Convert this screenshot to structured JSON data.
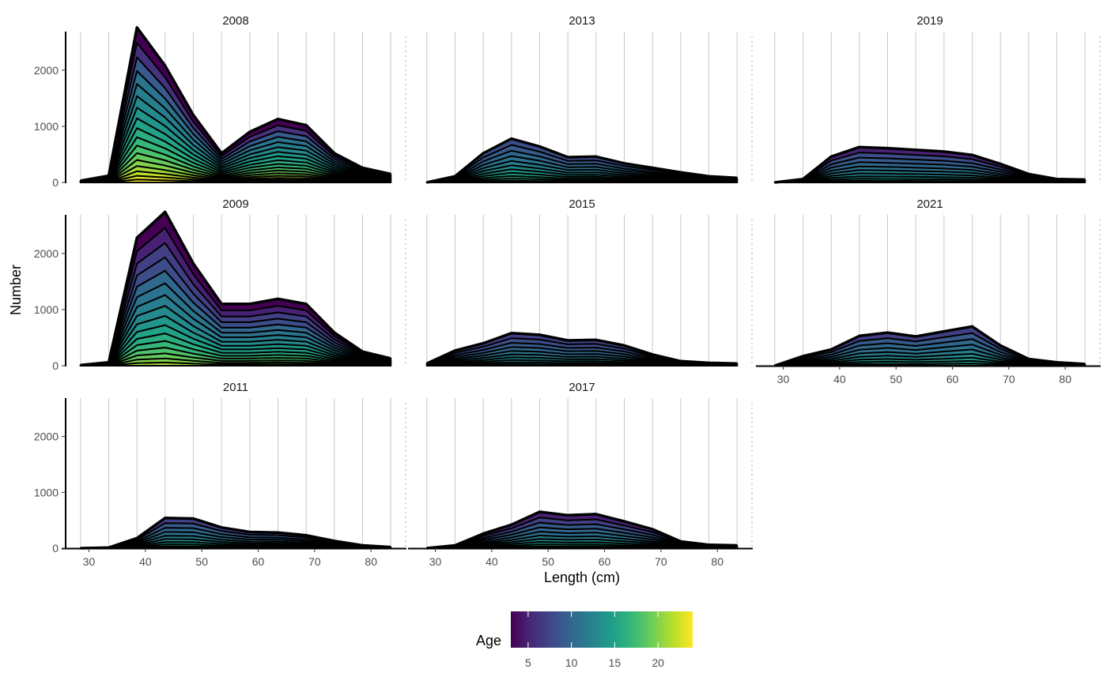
{
  "chart_data": {
    "type": "area",
    "stacked": true,
    "layout": "facet-wrap, 3 columns",
    "xlabel": "Length (cm)",
    "ylabel": "Number",
    "xlim": [
      26,
      86
    ],
    "ylim": [
      0,
      2800
    ],
    "x_ticks": [
      30,
      40,
      50,
      60,
      70,
      80
    ],
    "y_ticks": [
      0,
      1000,
      2000
    ],
    "x": [
      28.5,
      33.5,
      38.5,
      43.5,
      48.5,
      53.5,
      58.5,
      63.5,
      68.5,
      73.5,
      78.5,
      83.5
    ],
    "legend": {
      "title": "Age",
      "type": "colorbar",
      "placement": "bottom",
      "range": [
        3,
        24
      ],
      "ticks": [
        5,
        10,
        15,
        20
      ],
      "colors": [
        "#440154",
        "#482878",
        "#3e4989",
        "#31688e",
        "#26828e",
        "#1f9e89",
        "#35b779",
        "#6ece58",
        "#b5de2b",
        "#fde725"
      ]
    },
    "panels": [
      {
        "label": "2008",
        "band_ages": [
          3,
          6,
          9,
          11,
          12,
          13,
          14,
          15,
          16,
          17,
          18,
          19,
          20,
          21,
          22,
          23,
          24
        ],
        "totals": [
          30,
          120,
          2760,
          2080,
          1200,
          520,
          900,
          1130,
          1020,
          520,
          260,
          150
        ],
        "x_end": 83.5
      },
      {
        "label": "2013",
        "band_ages": [
          8,
          9,
          10,
          11,
          12,
          13,
          14,
          15,
          16,
          17,
          18
        ],
        "totals": [
          0,
          110,
          520,
          780,
          640,
          450,
          460,
          340,
          260,
          180,
          110,
          80
        ],
        "x_end": 83.5
      },
      {
        "label": "2019",
        "band_ages": [
          5,
          8,
          9,
          10,
          11,
          12,
          13,
          14,
          15,
          16
        ],
        "totals": [
          0,
          60,
          460,
          630,
          610,
          580,
          550,
          490,
          330,
          150,
          60,
          50
        ],
        "x_end": 83.5
      },
      {
        "label": "2009",
        "band_ages": [
          3,
          5,
          7,
          8,
          10,
          11,
          12,
          13,
          14,
          15,
          16,
          17,
          18,
          19,
          20,
          21
        ],
        "totals": [
          10,
          60,
          2280,
          2740,
          1820,
          1100,
          1100,
          1190,
          1100,
          590,
          250,
          130
        ],
        "x_end": 83.5
      },
      {
        "label": "2015",
        "band_ages": [
          7,
          8,
          9,
          10,
          11,
          12,
          13,
          14,
          15,
          16
        ],
        "totals": [
          40,
          270,
          400,
          580,
          550,
          450,
          460,
          360,
          200,
          80,
          50,
          40
        ],
        "x_end": 83.5
      },
      {
        "label": "2021",
        "band_ages": [
          7,
          9,
          10,
          11,
          12,
          13,
          14,
          15,
          16
        ],
        "totals": [
          0,
          170,
          290,
          530,
          590,
          520,
          610,
          700,
          360,
          120,
          60,
          30
        ],
        "x_end": 83.5
      },
      {
        "label": "2011",
        "band_ages": [
          7,
          9,
          10,
          11,
          12,
          13,
          14,
          15,
          16
        ],
        "totals": [
          0,
          10,
          180,
          540,
          530,
          370,
          290,
          280,
          230,
          130,
          50,
          20
        ],
        "x_end": 83.5
      },
      {
        "label": "2017",
        "band_ages": [
          5,
          7,
          9,
          10,
          11,
          12,
          13,
          14,
          15,
          16
        ],
        "totals": [
          0,
          50,
          260,
          420,
          650,
          590,
          610,
          480,
          340,
          120,
          60,
          50
        ],
        "x_end": 83.5
      }
    ]
  }
}
